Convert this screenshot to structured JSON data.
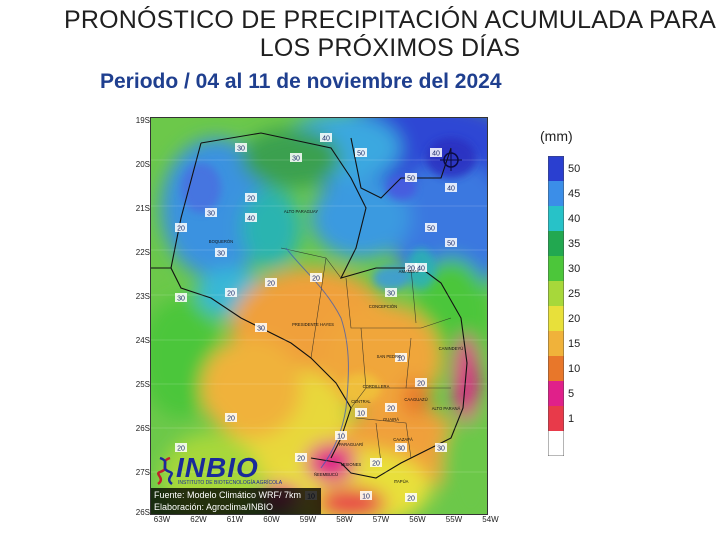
{
  "title": {
    "line1": "PRONÓSTICO DE PRECIPITACIÓN ACUMULADA PARA",
    "line2": "LOS PRÓXIMOS DÍAS"
  },
  "subtitle": "Periodo / 04 al 11 de noviembre del 2024",
  "map": {
    "lat_labels": [
      "19S",
      "20S",
      "21S",
      "22S",
      "23S",
      "24S",
      "25S",
      "26S",
      "27S",
      "26S"
    ],
    "lon_labels": [
      "63W",
      "62W",
      "61W",
      "60W",
      "59W",
      "58W",
      "57W",
      "56W",
      "55W",
      "54W"
    ],
    "region_labels": [
      "ALTO PARAGUAY",
      "BOQUERÓN",
      "PRESIDENTE HAYES",
      "CONCEPCIÓN",
      "AMAMBAY",
      "SAN PEDRO",
      "CANINDEYÚ",
      "CORDILLERA",
      "CAAGUAZÚ",
      "ALTO PARANÁ",
      "GUAIRÁ",
      "PARAGUARÍ",
      "CAAZAPÁ",
      "MISIONES",
      "ÑEEMBUCÚ",
      "ITAPÚA",
      "CENTRAL"
    ],
    "contour_labels": [
      "30",
      "40",
      "50",
      "40",
      "30",
      "20",
      "50",
      "40",
      "50",
      "30",
      "20",
      "30",
      "40",
      "20",
      "30",
      "20",
      "50",
      "40",
      "30",
      "20",
      "30",
      "20",
      "10",
      "20",
      "10",
      "20",
      "30",
      "10",
      "20",
      "20",
      "30",
      "20",
      "10",
      "10",
      "20",
      "20"
    ]
  },
  "legend": {
    "unit": "(mm)",
    "ticks": [
      "50",
      "45",
      "40",
      "35",
      "30",
      "25",
      "20",
      "15",
      "10",
      "5",
      "1"
    ],
    "colors": [
      "#2a3fd0",
      "#3b8ee8",
      "#27c2c8",
      "#22a850",
      "#4cc63a",
      "#a7d83a",
      "#e8e03a",
      "#f0b23a",
      "#e8772a",
      "#e0208a",
      "#e83a4a",
      "#ffffff"
    ]
  },
  "logo": {
    "name": "INBIO",
    "subtitle": "INSTITUTO DE BIOTECNOLOGÍA AGRÍCOLA"
  },
  "credits": {
    "source": "Fuente: Modelo Climático WRF/ 7km",
    "made_by": "Elaboración: Agroclima/INBIO"
  }
}
